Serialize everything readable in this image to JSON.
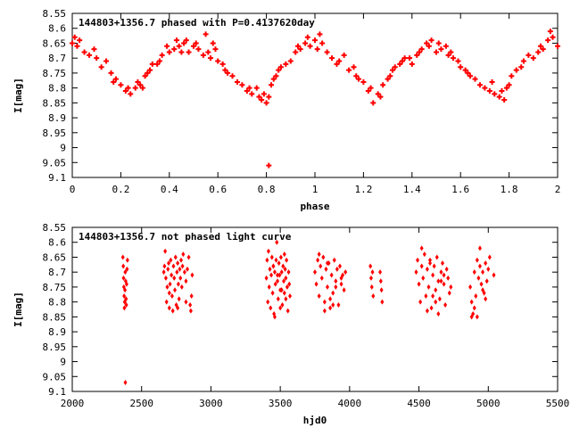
{
  "chart_data": [
    {
      "type": "scatter",
      "title": "144803+1356.7 phased with P=0.4137620day",
      "xlabel": "phase",
      "ylabel": "I[mag]",
      "xlim": [
        0,
        2
      ],
      "ylim": [
        8.55,
        9.1
      ],
      "y_inverted": true,
      "grid": false,
      "marker_color": "#ff0000",
      "x_ticks": [
        "0",
        "0.2",
        "0.4",
        "0.6",
        "0.8",
        "1",
        "1.2",
        "1.4",
        "1.6",
        "1.8",
        "2"
      ],
      "y_ticks": [
        "8.55",
        "8.6",
        "8.65",
        "8.7",
        "8.75",
        "8.8",
        "8.85",
        "8.9",
        "8.95",
        "9",
        "9.05",
        "9.1"
      ],
      "series": [
        {
          "x": [
            0.0,
            0.01,
            0.02,
            0.03,
            0.05,
            0.07,
            0.09,
            0.1,
            0.12,
            0.14,
            0.16,
            0.17,
            0.18,
            0.2,
            0.22,
            0.23,
            0.24,
            0.26,
            0.27,
            0.28,
            0.3,
            0.31,
            0.32,
            0.33,
            0.35,
            0.36,
            0.37,
            0.39,
            0.4,
            0.42,
            0.43,
            0.44,
            0.46,
            0.47,
            0.48,
            0.5,
            0.51,
            0.52,
            0.54,
            0.55,
            0.56,
            0.57,
            0.59,
            0.6,
            0.62,
            0.63,
            0.64,
            0.66,
            0.68,
            0.7,
            0.72,
            0.73,
            0.74,
            0.76,
            0.77,
            0.78,
            0.79,
            0.8,
            0.81,
            0.82,
            0.83,
            0.84,
            0.85,
            0.86,
            0.88,
            0.9,
            0.92,
            0.93,
            0.94,
            0.96,
            0.97,
            0.98,
            1.0,
            1.01,
            1.02,
            1.03,
            1.05,
            1.07,
            1.09,
            1.1,
            1.12,
            1.14,
            1.16,
            1.17,
            1.18,
            1.2,
            1.22,
            1.23,
            1.24,
            1.26,
            1.27,
            1.28,
            1.3,
            1.31,
            1.32,
            1.33,
            1.35,
            1.36,
            1.37,
            1.39,
            1.4,
            1.42,
            1.43,
            1.44,
            1.46,
            1.47,
            1.48,
            1.5,
            1.51,
            1.52,
            1.54,
            1.55,
            1.56,
            1.57,
            1.59,
            1.6,
            1.62,
            1.63,
            1.64,
            1.66,
            1.68,
            1.7,
            1.72,
            1.73,
            1.74,
            1.76,
            1.77,
            1.78,
            1.79,
            1.8,
            1.81,
            1.83,
            1.85,
            1.86,
            1.88,
            1.9,
            1.92,
            1.93,
            1.94,
            1.96,
            1.97,
            1.98,
            2.0,
            0.29,
            0.45,
            0.58,
            0.81
          ],
          "y": [
            8.65,
            8.63,
            8.66,
            8.64,
            8.68,
            8.69,
            8.67,
            8.7,
            8.73,
            8.71,
            8.75,
            8.78,
            8.77,
            8.79,
            8.81,
            8.8,
            8.82,
            8.8,
            8.78,
            8.79,
            8.76,
            8.75,
            8.74,
            8.72,
            8.72,
            8.71,
            8.69,
            8.66,
            8.68,
            8.67,
            8.64,
            8.66,
            8.65,
            8.64,
            8.68,
            8.66,
            8.65,
            8.67,
            8.69,
            8.62,
            8.68,
            8.7,
            8.67,
            8.71,
            8.72,
            8.74,
            8.75,
            8.76,
            8.78,
            8.79,
            8.81,
            8.8,
            8.82,
            8.8,
            8.83,
            8.84,
            8.82,
            8.85,
            8.83,
            8.79,
            8.77,
            8.76,
            8.74,
            8.73,
            8.72,
            8.71,
            8.68,
            8.66,
            8.67,
            8.65,
            8.63,
            8.66,
            8.64,
            8.67,
            8.62,
            8.65,
            8.68,
            8.7,
            8.72,
            8.71,
            8.69,
            8.74,
            8.73,
            8.76,
            8.77,
            8.78,
            8.81,
            8.8,
            8.85,
            8.82,
            8.83,
            8.79,
            8.77,
            8.76,
            8.74,
            8.73,
            8.72,
            8.71,
            8.7,
            8.7,
            8.72,
            8.69,
            8.68,
            8.67,
            8.65,
            8.66,
            8.64,
            8.68,
            8.65,
            8.67,
            8.66,
            8.69,
            8.68,
            8.7,
            8.71,
            8.73,
            8.74,
            8.75,
            8.76,
            8.77,
            8.79,
            8.8,
            8.81,
            8.78,
            8.82,
            8.83,
            8.81,
            8.84,
            8.8,
            8.79,
            8.76,
            8.74,
            8.73,
            8.71,
            8.69,
            8.7,
            8.68,
            8.66,
            8.67,
            8.64,
            8.61,
            8.63,
            8.66,
            8.8,
            8.68,
            8.65,
            9.06
          ]
        }
      ]
    },
    {
      "type": "scatter",
      "title": "144803+1356.7 not phased light curve",
      "xlabel": "hjd0",
      "ylabel": "I[mag]",
      "xlim": [
        2000,
        5500
      ],
      "ylim": [
        8.55,
        9.1
      ],
      "y_inverted": true,
      "grid": false,
      "marker_color": "#ff0000",
      "x_ticks": [
        "2000",
        "2500",
        "3000",
        "3500",
        "4000",
        "4500",
        "5000",
        "5500"
      ],
      "y_ticks": [
        "8.55",
        "8.6",
        "8.65",
        "8.7",
        "8.75",
        "8.8",
        "8.85",
        "8.9",
        "8.95",
        "9",
        "9.05",
        "9.1"
      ],
      "series": [
        {
          "x": [
            2365,
            2368,
            2370,
            2372,
            2374,
            2376,
            2378,
            2380,
            2382,
            2385,
            2388,
            2390,
            2392,
            2395,
            2398,
            2383,
            2660,
            2665,
            2670,
            2675,
            2680,
            2685,
            2690,
            2695,
            2700,
            2705,
            2710,
            2715,
            2720,
            2725,
            2730,
            2735,
            2740,
            2745,
            2750,
            2755,
            2760,
            2765,
            2770,
            2775,
            2780,
            2785,
            2790,
            2795,
            2800,
            2810,
            2820,
            2830,
            2840,
            2850,
            2855,
            2860,
            2865,
            2700,
            2760,
            2820,
            3400,
            3405,
            3410,
            3415,
            3420,
            3425,
            3430,
            3435,
            3440,
            3445,
            3450,
            3455,
            3460,
            3465,
            3470,
            3475,
            3480,
            3485,
            3490,
            3495,
            3500,
            3505,
            3510,
            3515,
            3520,
            3525,
            3530,
            3535,
            3540,
            3545,
            3550,
            3555,
            3560,
            3565,
            3570,
            3450,
            3480,
            3510,
            3540,
            3460,
            3500,
            3530,
            3750,
            3760,
            3770,
            3780,
            3790,
            3800,
            3810,
            3820,
            3830,
            3840,
            3850,
            3860,
            3870,
            3880,
            3890,
            3900,
            3910,
            3920,
            3930,
            3940,
            3950,
            3960,
            3970,
            3780,
            3820,
            3860,
            3900,
            3940,
            3840,
            3880,
            4150,
            4155,
            4160,
            4165,
            4170,
            4220,
            4225,
            4230,
            4235,
            4480,
            4490,
            4500,
            4510,
            4520,
            4530,
            4540,
            4550,
            4560,
            4570,
            4580,
            4590,
            4600,
            4610,
            4620,
            4630,
            4640,
            4650,
            4660,
            4670,
            4680,
            4690,
            4700,
            4710,
            4720,
            4730,
            4520,
            4560,
            4600,
            4640,
            4680,
            4580,
            4620,
            4660,
            4870,
            4880,
            4890,
            4900,
            4910,
            4920,
            4930,
            4940,
            4950,
            4960,
            4970,
            4980,
            4990,
            5000,
            5010,
            5040,
            4900,
            4940,
            4960,
            4980,
            4920,
            4880
          ],
          "y": [
            8.65,
            8.68,
            8.72,
            8.75,
            8.78,
            8.82,
            8.8,
            8.76,
            8.7,
            8.73,
            8.79,
            8.81,
            8.74,
            8.69,
            8.66,
            9.07,
            8.7,
            8.68,
            8.63,
            8.72,
            8.8,
            8.75,
            8.69,
            8.67,
            8.82,
            8.74,
            8.66,
            8.71,
            8.78,
            8.83,
            8.68,
            8.72,
            8.76,
            8.65,
            8.81,
            8.7,
            8.67,
            8.74,
            8.79,
            8.69,
            8.72,
            8.66,
            8.75,
            8.68,
            8.64,
            8.7,
            8.73,
            8.69,
            8.65,
            8.81,
            8.83,
            8.78,
            8.71,
            8.77,
            8.82,
            8.8,
            8.72,
            8.66,
            8.8,
            8.63,
            8.75,
            8.69,
            8.82,
            8.71,
            8.65,
            8.77,
            8.68,
            8.84,
            8.7,
            8.74,
            8.66,
            8.6,
            8.73,
            8.79,
            8.67,
            8.71,
            8.76,
            8.65,
            8.7,
            8.81,
            8.68,
            8.73,
            8.77,
            8.69,
            8.72,
            8.66,
            8.75,
            8.83,
            8.7,
            8.74,
            8.78,
            8.68,
            8.71,
            8.76,
            8.79,
            8.85,
            8.82,
            8.64,
            8.7,
            8.74,
            8.66,
            8.78,
            8.68,
            8.72,
            8.65,
            8.8,
            8.69,
            8.75,
            8.67,
            8.82,
            8.71,
            8.77,
            8.66,
            8.73,
            8.69,
            8.81,
            8.68,
            8.74,
            8.71,
            8.76,
            8.7,
            8.64,
            8.83,
            8.79,
            8.75,
            8.72,
            8.67,
            8.81,
            8.68,
            8.72,
            8.75,
            8.7,
            8.78,
            8.7,
            8.73,
            8.76,
            8.8,
            8.7,
            8.66,
            8.74,
            8.8,
            8.68,
            8.72,
            8.64,
            8.78,
            8.69,
            8.75,
            8.66,
            8.82,
            8.71,
            8.68,
            8.76,
            8.65,
            8.73,
            8.79,
            8.7,
            8.67,
            8.74,
            8.81,
            8.69,
            8.72,
            8.77,
            8.75,
            8.62,
            8.83,
            8.78,
            8.84,
            8.71,
            8.67,
            8.8,
            8.73,
            8.75,
            8.8,
            8.84,
            8.7,
            8.78,
            8.66,
            8.72,
            8.68,
            8.74,
            8.7,
            8.77,
            8.67,
            8.73,
            8.69,
            8.65,
            8.71,
            8.82,
            8.62,
            8.76,
            8.79,
            8.85,
            8.85
          ]
        }
      ]
    }
  ]
}
